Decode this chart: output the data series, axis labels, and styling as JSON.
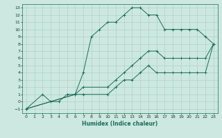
{
  "xlabel": "Humidex (Indice chaleur)",
  "bg_color": "#cce8e0",
  "grid_color": "#aaccc4",
  "line_color": "#1a6b5a",
  "xlim": [
    -0.5,
    23.5
  ],
  "ylim": [
    -1.6,
    13.5
  ],
  "xticks": [
    0,
    1,
    2,
    3,
    4,
    5,
    6,
    7,
    8,
    9,
    10,
    11,
    12,
    13,
    14,
    15,
    16,
    17,
    18,
    19,
    20,
    21,
    22,
    23
  ],
  "yticks": [
    -1,
    0,
    1,
    2,
    3,
    4,
    5,
    6,
    7,
    8,
    9,
    10,
    11,
    12,
    13
  ],
  "curve1_x": [
    0,
    2,
    3,
    4,
    5,
    6,
    7,
    8,
    9,
    10,
    11,
    12,
    13,
    14,
    15,
    16,
    17,
    18,
    19,
    20,
    21,
    22,
    23
  ],
  "curve1_y": [
    -1,
    1,
    0,
    0,
    1,
    1,
    4,
    9,
    10,
    11,
    11,
    12,
    13,
    13,
    12,
    12,
    10,
    10,
    10,
    10,
    10,
    9,
    8
  ],
  "curve2_x": [
    0,
    6,
    7,
    10,
    11,
    12,
    13,
    14,
    15,
    16,
    17,
    18,
    19,
    20,
    21,
    22,
    23
  ],
  "curve2_y": [
    -1,
    1,
    2,
    2,
    3,
    4,
    5,
    6,
    7,
    7,
    6,
    6,
    6,
    6,
    6,
    6,
    8
  ],
  "curve3_x": [
    0,
    6,
    7,
    10,
    11,
    12,
    13,
    14,
    15,
    16,
    17,
    18,
    19,
    20,
    21,
    22,
    23
  ],
  "curve3_y": [
    -1,
    1,
    1,
    1,
    2,
    3,
    3,
    4,
    5,
    4,
    4,
    4,
    4,
    4,
    4,
    4,
    8
  ]
}
